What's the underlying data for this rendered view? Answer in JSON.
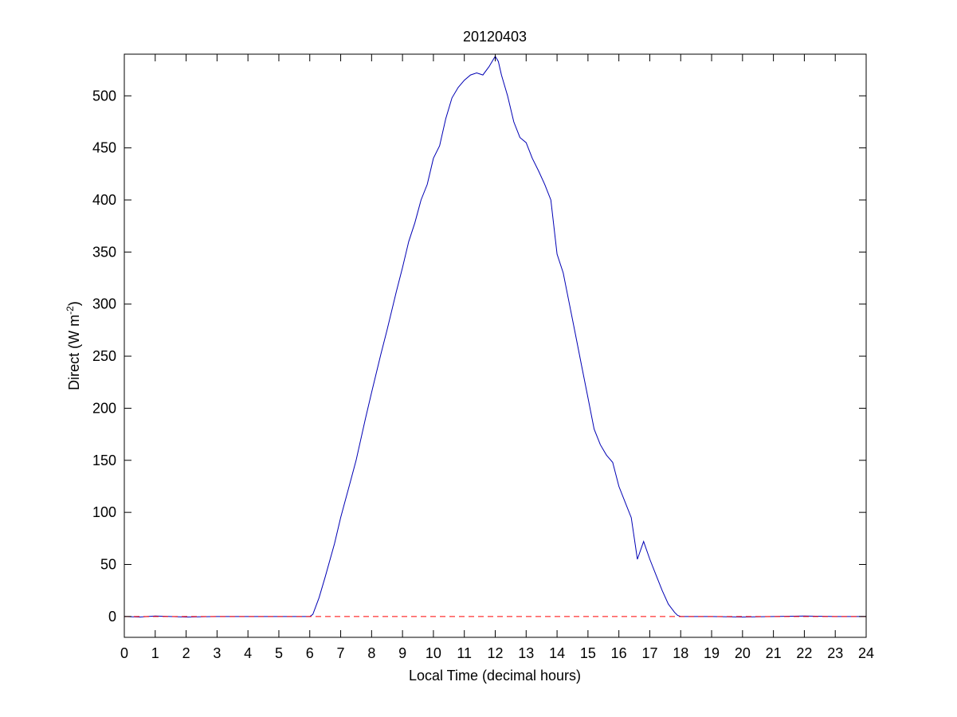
{
  "window": {
    "background": "#ffffff"
  },
  "chart_data": {
    "type": "line",
    "title": "20120403",
    "xlabel": "Local Time (decimal hours)",
    "ylabel_main": "Direct (W m",
    "ylabel_sup": "-2",
    "ylabel_close": ")",
    "xlim": [
      0,
      24
    ],
    "ylim": [
      -20,
      540
    ],
    "xticks": [
      0,
      1,
      2,
      3,
      4,
      5,
      6,
      7,
      8,
      9,
      10,
      11,
      12,
      13,
      14,
      15,
      16,
      17,
      18,
      19,
      20,
      21,
      22,
      23,
      24
    ],
    "xtick_labels": [
      "0",
      "1",
      "2",
      "3",
      "4",
      "5",
      "6",
      "7",
      "8",
      "9",
      "10",
      "11",
      "12",
      "13",
      "14",
      "15",
      "16",
      "17",
      "18",
      "19",
      "20",
      "21",
      "22",
      "23",
      "24"
    ],
    "yticks": [
      0,
      50,
      100,
      150,
      200,
      250,
      300,
      350,
      400,
      450,
      500
    ],
    "ytick_labels": [
      "0",
      "50",
      "100",
      "150",
      "200",
      "250",
      "300",
      "350",
      "400",
      "450",
      "500"
    ],
    "grid": false,
    "series": [
      {
        "style": "solid",
        "color": "#0000b4",
        "x": [
          0.0,
          0.5,
          1.0,
          1.5,
          2.0,
          3.0,
          4.0,
          5.0,
          6.0,
          6.1,
          6.3,
          6.5,
          6.8,
          7.0,
          7.3,
          7.5,
          7.8,
          8.0,
          8.3,
          8.5,
          8.8,
          9.0,
          9.2,
          9.4,
          9.6,
          9.8,
          10.0,
          10.2,
          10.4,
          10.6,
          10.8,
          11.0,
          11.2,
          11.4,
          11.6,
          11.8,
          12.0,
          12.1,
          12.2,
          12.4,
          12.6,
          12.8,
          13.0,
          13.2,
          13.4,
          13.6,
          13.8,
          14.0,
          14.2,
          14.4,
          14.6,
          14.8,
          15.0,
          15.2,
          15.4,
          15.6,
          15.8,
          16.0,
          16.2,
          16.4,
          16.6,
          16.8,
          17.0,
          17.2,
          17.4,
          17.6,
          17.8,
          17.9,
          18.0,
          18.5,
          19.0,
          20.0,
          21.0,
          22.0,
          23.0,
          24.0
        ],
        "y": [
          0,
          -0.5,
          0.5,
          0,
          -0.5,
          0,
          0,
          0,
          0,
          2,
          18,
          38,
          70,
          95,
          128,
          150,
          190,
          215,
          252,
          275,
          312,
          335,
          360,
          378,
          400,
          415,
          440,
          452,
          478,
          498,
          508,
          515,
          520,
          522,
          520,
          528,
          538,
          533,
          520,
          500,
          475,
          460,
          455,
          440,
          428,
          415,
          400,
          348,
          330,
          300,
          270,
          240,
          210,
          180,
          165,
          155,
          148,
          125,
          110,
          95,
          55,
          72,
          55,
          40,
          25,
          12,
          4,
          1,
          0,
          0,
          0,
          -0.5,
          0,
          0.5,
          0,
          0
        ]
      },
      {
        "style": "dashed",
        "color": "#ff0000",
        "x": [
          0,
          24
        ],
        "y": [
          0,
          0
        ]
      }
    ]
  }
}
